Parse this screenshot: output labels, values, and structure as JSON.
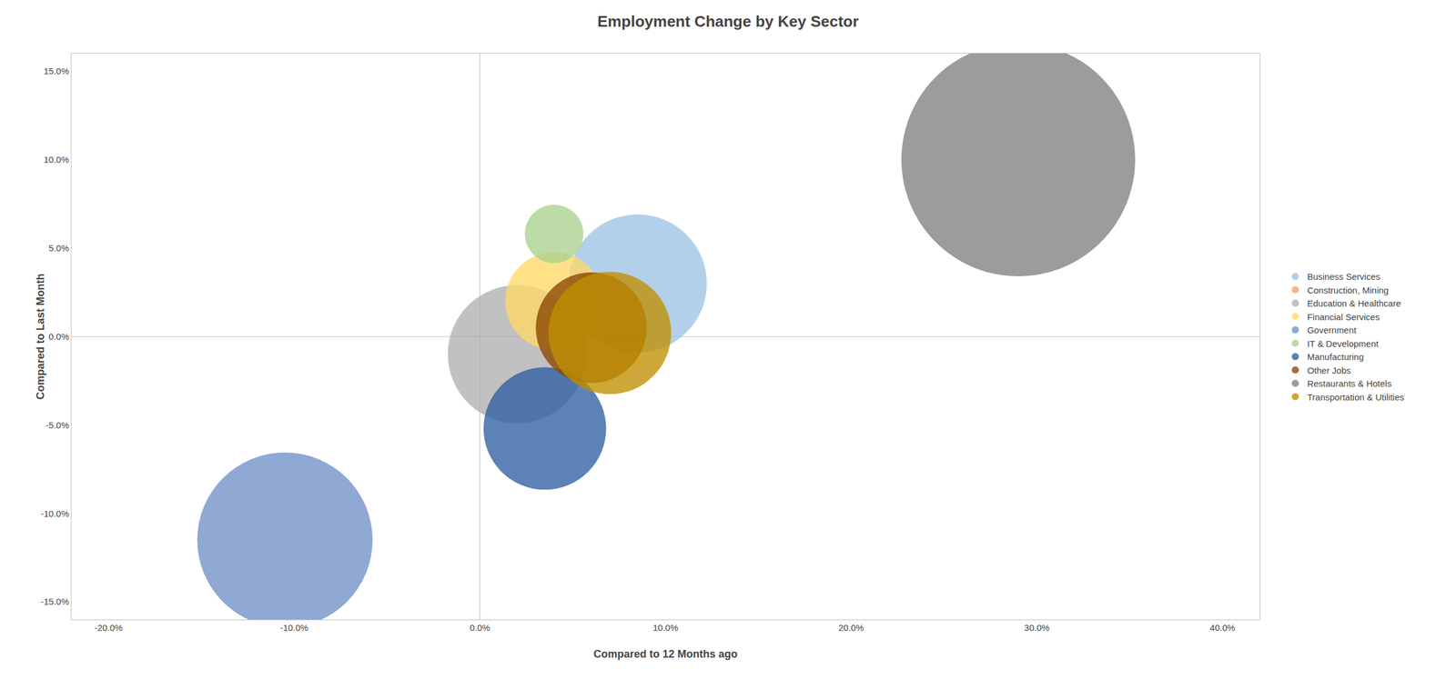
{
  "chart_data": {
    "type": "bubble",
    "title": "Employment Change by Key Sector",
    "xlabel": "Compared to 12 Months ago",
    "ylabel": "Compared to Last Month",
    "xlim": [
      -0.22,
      0.42
    ],
    "ylim": [
      -0.16,
      0.16
    ],
    "xticks": [
      {
        "value": -0.2,
        "label": "-20.0%"
      },
      {
        "value": -0.1,
        "label": "-10.0%"
      },
      {
        "value": 0.0,
        "label": "0.0%"
      },
      {
        "value": 0.1,
        "label": "10.0%"
      },
      {
        "value": 0.2,
        "label": "20.0%"
      },
      {
        "value": 0.3,
        "label": "30.0%"
      },
      {
        "value": 0.4,
        "label": "40.0%"
      }
    ],
    "yticks": [
      {
        "value": -0.15,
        "label": "-15.0%"
      },
      {
        "value": -0.1,
        "label": "-10.0%"
      },
      {
        "value": -0.05,
        "label": "-5.0%"
      },
      {
        "value": 0.0,
        "label": "0.0%"
      },
      {
        "value": 0.05,
        "label": "5.0%"
      },
      {
        "value": 0.1,
        "label": "10.0%"
      },
      {
        "value": 0.15,
        "label": "15.0%"
      }
    ],
    "grid": false,
    "legend": "right",
    "series": [
      {
        "name": "Business Services",
        "color": "#9dc3e6",
        "x": [
          0.085
        ],
        "values": [
          0.03
        ],
        "size": [
          28000
        ]
      },
      {
        "name": "Construction, Mining",
        "color": "#f4a460",
        "x": [
          0.038
        ],
        "values": [
          0.005
        ],
        "size": [
          1500
        ]
      },
      {
        "name": "Education & Healthcare",
        "color": "#b0b0b0",
        "x": [
          0.02
        ],
        "values": [
          -0.01
        ],
        "size": [
          28000
        ]
      },
      {
        "name": "Financial Services",
        "color": "#ffd966",
        "x": [
          0.04
        ],
        "values": [
          0.02
        ],
        "size": [
          14000
        ]
      },
      {
        "name": "Government",
        "color": "#7090c8",
        "x": [
          -0.105
        ],
        "values": [
          -0.115
        ],
        "size": [
          45000
        ]
      },
      {
        "name": "IT & Development",
        "color": "#a9d18e",
        "x": [
          0.04
        ],
        "values": [
          0.058
        ],
        "size": [
          5000
        ]
      },
      {
        "name": "Manufacturing",
        "color": "#2e5fa3",
        "x": [
          0.035
        ],
        "values": [
          -0.052
        ],
        "size": [
          22000
        ]
      },
      {
        "name": "Other Jobs",
        "color": "#8b4500",
        "x": [
          0.06
        ],
        "values": [
          0.005
        ],
        "size": [
          18000
        ]
      },
      {
        "name": "Restaurants & Hotels",
        "color": "#808080",
        "x": [
          0.29
        ],
        "values": [
          0.1
        ],
        "size": [
          80000
        ]
      },
      {
        "name": "Transportation & Utilities",
        "color": "#bf8f00",
        "x": [
          0.07
        ],
        "values": [
          0.002
        ],
        "size": [
          22000
        ]
      }
    ]
  }
}
